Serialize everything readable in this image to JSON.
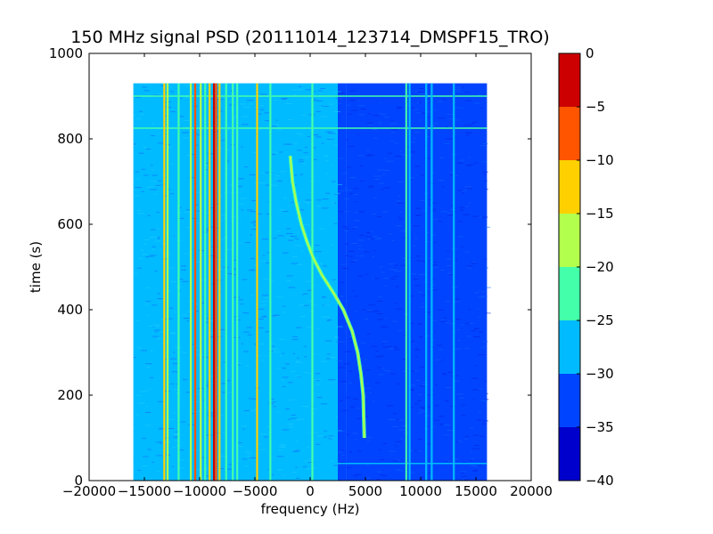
{
  "chart_data": {
    "type": "heatmap",
    "title": "150 MHz signal PSD (20111014_123714_DMSPF15_TRO)",
    "xlabel": "frequency (Hz)",
    "ylabel": "time (s)",
    "xlim": [
      -20000,
      20000
    ],
    "ylim": [
      0,
      1000
    ],
    "xticks": [
      {
        "value": -20000,
        "label": "−20000"
      },
      {
        "value": -15000,
        "label": "−15000"
      },
      {
        "value": -10000,
        "label": "−10000"
      },
      {
        "value": -5000,
        "label": "−5000"
      },
      {
        "value": 0,
        "label": "0"
      },
      {
        "value": 5000,
        "label": "5000"
      },
      {
        "value": 10000,
        "label": "10000"
      },
      {
        "value": 15000,
        "label": "15000"
      },
      {
        "value": 20000,
        "label": "20000"
      }
    ],
    "yticks": [
      {
        "value": 0,
        "label": "0"
      },
      {
        "value": 200,
        "label": "200"
      },
      {
        "value": 400,
        "label": "400"
      },
      {
        "value": 600,
        "label": "600"
      },
      {
        "value": 800,
        "label": "800"
      },
      {
        "value": 1000,
        "label": "1000"
      }
    ],
    "data_extent": {
      "freq_min": -16000,
      "freq_max": 16000,
      "time_min": 0,
      "time_max": 930
    },
    "colorbar": {
      "min": -40,
      "max": 0,
      "levels": [
        -40,
        -35,
        -30,
        -25,
        -20,
        -15,
        -10,
        -5,
        0
      ],
      "labels": [
        "0",
        "−5",
        "−10",
        "−15",
        "−20",
        "−25",
        "−30",
        "−35",
        "−40"
      ],
      "label_values": [
        0,
        -5,
        -10,
        -15,
        -20,
        -25,
        -30,
        -35,
        -40
      ],
      "colors": [
        "#0000cd",
        "#0044ff",
        "#00bbff",
        "#44ffaa",
        "#b2ff4d",
        "#ffd000",
        "#ff5500",
        "#cc0000"
      ]
    },
    "background_regions": [
      {
        "f_start": -16000,
        "f_end": 2500,
        "level": -28
      },
      {
        "f_start": 2500,
        "f_end": 3300,
        "level": -31
      },
      {
        "f_start": 3300,
        "f_end": 16000,
        "level": -33
      }
    ],
    "vertical_lines": [
      {
        "freq": -13200,
        "level": -12
      },
      {
        "freq": -12900,
        "level": -20
      },
      {
        "freq": -11900,
        "level": -22
      },
      {
        "freq": -10800,
        "level": -18
      },
      {
        "freq": -10400,
        "level": -10
      },
      {
        "freq": -9900,
        "level": -17
      },
      {
        "freq": -9500,
        "level": -22
      },
      {
        "freq": -9100,
        "level": -14
      },
      {
        "freq": -8700,
        "level": -3
      },
      {
        "freq": -8500,
        "level": -10
      },
      {
        "freq": -8200,
        "level": -14
      },
      {
        "freq": -7600,
        "level": -22
      },
      {
        "freq": -7000,
        "level": -24
      },
      {
        "freq": -6600,
        "level": -24
      },
      {
        "freq": -4800,
        "level": -15
      },
      {
        "freq": -3600,
        "level": -22
      },
      {
        "freq": 200,
        "level": -24
      },
      {
        "freq": 8700,
        "level": -24
      },
      {
        "freq": 9000,
        "level": -26
      },
      {
        "freq": 10500,
        "level": -28
      },
      {
        "freq": 11000,
        "level": -28
      },
      {
        "freq": 13000,
        "level": -30
      }
    ],
    "horizontal_lines": [
      {
        "time": 900,
        "level": -24
      },
      {
        "time": 825,
        "level": -25
      },
      {
        "time": 40,
        "level": -26
      }
    ],
    "doppler_trace": {
      "level": -18,
      "points": [
        {
          "t": 760,
          "f": -1800
        },
        {
          "t": 700,
          "f": -1600
        },
        {
          "t": 650,
          "f": -1250
        },
        {
          "t": 600,
          "f": -800
        },
        {
          "t": 560,
          "f": -300
        },
        {
          "t": 520,
          "f": 300
        },
        {
          "t": 480,
          "f": 1100
        },
        {
          "t": 440,
          "f": 2100
        },
        {
          "t": 400,
          "f": 3000
        },
        {
          "t": 350,
          "f": 3800
        },
        {
          "t": 300,
          "f": 4300
        },
        {
          "t": 250,
          "f": 4600
        },
        {
          "t": 200,
          "f": 4800
        },
        {
          "t": 150,
          "f": 4850
        },
        {
          "t": 100,
          "f": 4900
        }
      ]
    }
  }
}
